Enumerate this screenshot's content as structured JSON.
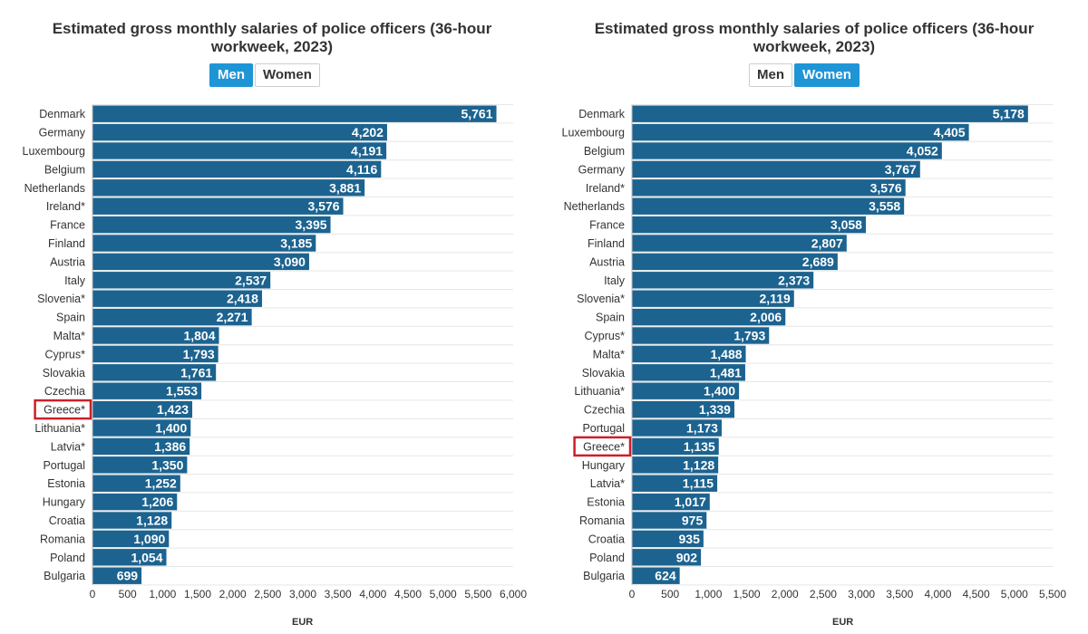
{
  "charts": [
    {
      "title_line1": "Estimated gross monthly salaries of police officers (36-hour",
      "title_line2": "workweek, 2023)",
      "toggle": {
        "men_label": "Men",
        "women_label": "Women",
        "active": "men"
      },
      "highlight": "Greece*",
      "accent_color": "#1f95d6",
      "bar_color": "#1c6390",
      "highlight_color": "#cc1f2a"
    },
    {
      "title_line1": "Estimated gross monthly salaries of police officers (36-hour",
      "title_line2": "workweek, 2023)",
      "toggle": {
        "men_label": "Men",
        "women_label": "Women",
        "active": "women"
      },
      "highlight": "Greece*",
      "accent_color": "#1f95d6",
      "bar_color": "#1c6390",
      "highlight_color": "#cc1f2a"
    }
  ],
  "chart_data": [
    {
      "type": "bar",
      "orientation": "horizontal",
      "title": "Estimated gross monthly salaries of police officers (36-hour workweek, 2023)",
      "xlabel": "EUR",
      "ylabel": "",
      "xlim": [
        0,
        6000
      ],
      "xticks": [
        "0",
        "500",
        "1,000",
        "1,500",
        "2,000",
        "2,500",
        "3,000",
        "3,500",
        "4,000",
        "4,500",
        "5,000",
        "5,500",
        "6,000"
      ],
      "grid": true,
      "categories": [
        "Denmark",
        "Germany",
        "Luxembourg",
        "Belgium",
        "Netherlands",
        "Ireland*",
        "France",
        "Finland",
        "Austria",
        "Italy",
        "Slovenia*",
        "Spain",
        "Malta*",
        "Cyprus*",
        "Slovakia",
        "Czechia",
        "Greece*",
        "Lithuania*",
        "Latvia*",
        "Portugal",
        "Estonia",
        "Hungary",
        "Croatia",
        "Romania",
        "Poland",
        "Bulgaria"
      ],
      "values": [
        5761,
        4202,
        4191,
        4116,
        3881,
        3576,
        3395,
        3185,
        3090,
        2537,
        2418,
        2271,
        1804,
        1793,
        1761,
        1553,
        1423,
        1400,
        1386,
        1350,
        1252,
        1206,
        1128,
        1090,
        1054,
        699
      ],
      "value_labels": [
        "5,761",
        "4,202",
        "4,191",
        "4,116",
        "3,881",
        "3,576",
        "3,395",
        "3,185",
        "3,090",
        "2,537",
        "2,418",
        "2,271",
        "1,804",
        "1,793",
        "1,761",
        "1,553",
        "1,423",
        "1,400",
        "1,386",
        "1,350",
        "1,252",
        "1,206",
        "1,128",
        "1,090",
        "1,054",
        "699"
      ]
    },
    {
      "type": "bar",
      "orientation": "horizontal",
      "title": "Estimated gross monthly salaries of police officers (36-hour workweek, 2023)",
      "xlabel": "EUR",
      "ylabel": "",
      "xlim": [
        0,
        5500
      ],
      "xticks": [
        "0",
        "500",
        "1,000",
        "1,500",
        "2,000",
        "2,500",
        "3,000",
        "3,500",
        "4,000",
        "4,500",
        "5,000",
        "5,500"
      ],
      "grid": true,
      "categories": [
        "Denmark",
        "Luxembourg",
        "Belgium",
        "Germany",
        "Ireland*",
        "Netherlands",
        "France",
        "Finland",
        "Austria",
        "Italy",
        "Slovenia*",
        "Spain",
        "Cyprus*",
        "Malta*",
        "Slovakia",
        "Lithuania*",
        "Czechia",
        "Portugal",
        "Greece*",
        "Hungary",
        "Latvia*",
        "Estonia",
        "Romania",
        "Croatia",
        "Poland",
        "Bulgaria"
      ],
      "values": [
        5178,
        4405,
        4052,
        3767,
        3576,
        3558,
        3058,
        2807,
        2689,
        2373,
        2119,
        2006,
        1793,
        1488,
        1481,
        1400,
        1339,
        1173,
        1135,
        1128,
        1115,
        1017,
        975,
        935,
        902,
        624
      ],
      "value_labels": [
        "5,178",
        "4,405",
        "4,052",
        "3,767",
        "3,576",
        "3,558",
        "3,058",
        "2,807",
        "2,689",
        "2,373",
        "2,119",
        "2,006",
        "1,793",
        "1,488",
        "1,481",
        "1,400",
        "1,339",
        "1,173",
        "1,135",
        "1,128",
        "1,115",
        "1,017",
        "975",
        "935",
        "902",
        "624"
      ]
    }
  ]
}
